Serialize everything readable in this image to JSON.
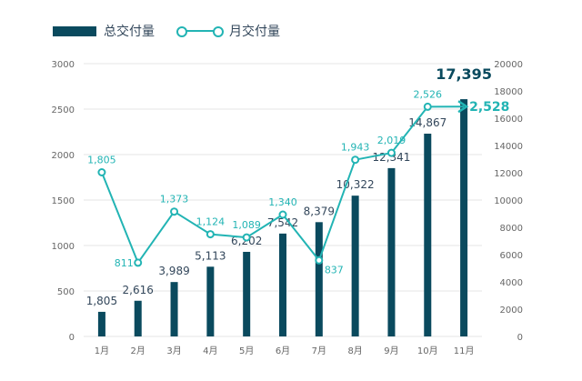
{
  "chart_data": {
    "type": "bar+line",
    "title": "",
    "categories": [
      "1月",
      "2月",
      "3月",
      "4月",
      "5月",
      "6月",
      "7月",
      "8月",
      "9月",
      "10月",
      "11月"
    ],
    "series": [
      {
        "name": "总交付量",
        "type": "bar",
        "axis": "right",
        "values": [
          1805,
          2616,
          3989,
          5113,
          6202,
          7542,
          8379,
          10322,
          12341,
          14867,
          17395
        ],
        "labels": [
          "1,805",
          "2,616",
          "3,989",
          "5,113",
          "6,202",
          "7,542",
          "8,379",
          "10,322",
          "12,341",
          "14,867",
          "17,395"
        ],
        "color": "#0a4a5e"
      },
      {
        "name": "月交付量",
        "type": "line",
        "axis": "left",
        "values": [
          1805,
          811,
          1373,
          1124,
          1089,
          1340,
          837,
          1943,
          2019,
          2526,
          2528
        ],
        "labels": [
          "1,805",
          "811",
          "1,373",
          "1,124",
          "1,089",
          "1,340",
          "837",
          "1,943",
          "2,019",
          "2,526",
          "2,528"
        ],
        "color": "#22b4b4"
      }
    ],
    "y_left": {
      "min": 0,
      "max": 3000,
      "ticks": [
        "0",
        "500",
        "1000",
        "1500",
        "2000",
        "2500",
        "3000"
      ]
    },
    "y_right": {
      "min": 0,
      "max": 20000,
      "ticks": [
        "0",
        "2000",
        "4000",
        "6000",
        "8000",
        "10000",
        "12000",
        "14000",
        "16000",
        "18000",
        "20000"
      ]
    },
    "grid": true,
    "legend": "top-left"
  }
}
